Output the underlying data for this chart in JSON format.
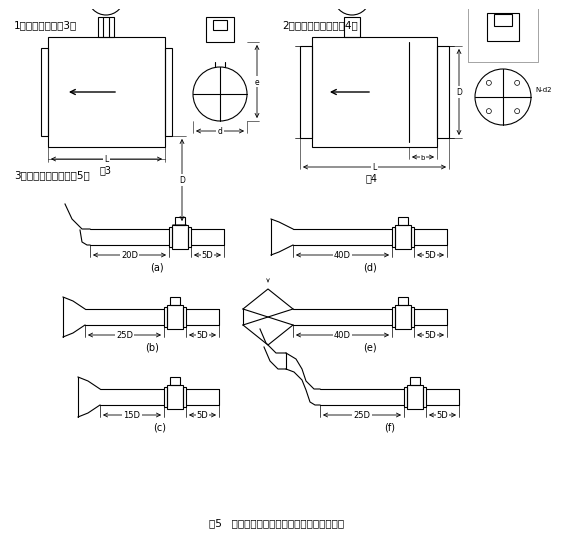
{
  "bg_color": "#ffffff",
  "lw": 0.8,
  "section1": "1、卡装式（见图3）",
  "section2": "2、法兰连接式（见图4）",
  "section3": "3、直管度要求（见图5）",
  "fig3": "图3",
  "fig4": "图4",
  "fig5": "图5   涂街流量计对上、下游直管段长度的要求",
  "Nd2": "N-d2",
  "dims_up": [
    "20D",
    "25D",
    "15D",
    "40D",
    "40D",
    "25D"
  ],
  "dim_dn": "5D",
  "subfigs": [
    "(a)",
    "(b)",
    "(c)",
    "(d)",
    "(e)",
    "(f)"
  ]
}
